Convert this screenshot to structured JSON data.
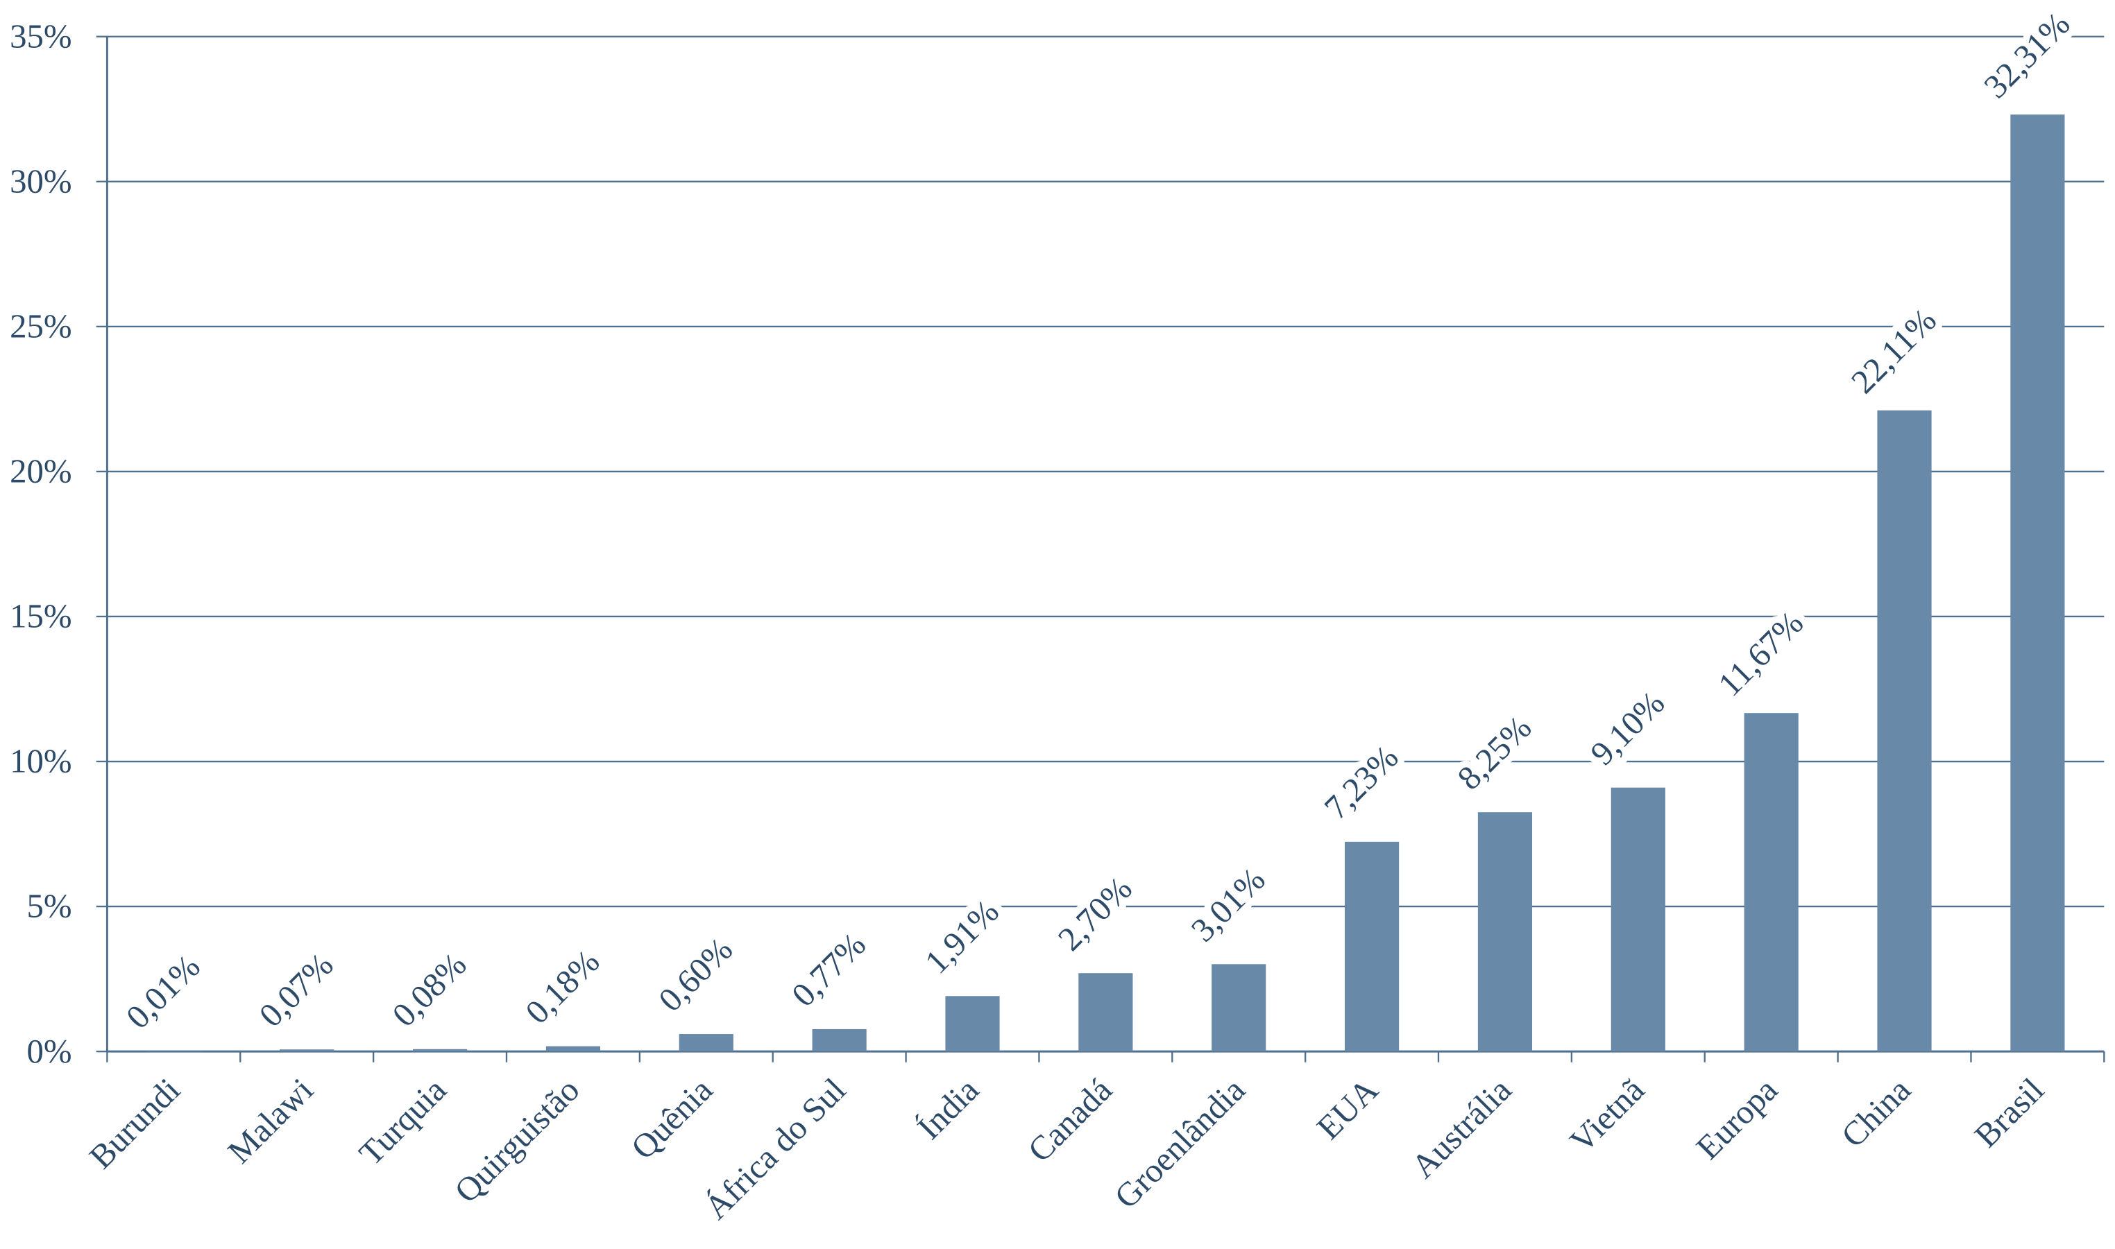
{
  "chart_data": {
    "type": "bar",
    "categories": [
      "Burundi",
      "Malawi",
      "Turquia",
      "Quirguistão",
      "Quênia",
      "África do Sul",
      "Índia",
      "Canadá",
      "Groenlândia",
      "EUA",
      "Austrália",
      "Vietnã",
      "Europa",
      "China",
      "Brasil"
    ],
    "values": [
      0.01,
      0.07,
      0.08,
      0.18,
      0.6,
      0.77,
      1.91,
      2.7,
      3.01,
      7.23,
      8.25,
      9.1,
      11.67,
      22.11,
      32.31
    ],
    "value_labels": [
      "0,01%",
      "0,07%",
      "0,08%",
      "0,18%",
      "0,60%",
      "0,77%",
      "1,91%",
      "2,70%",
      "3,01%",
      "7,23%",
      "8,25%",
      "9,10%",
      "11,67%",
      "22,11%",
      "32,31%"
    ],
    "color": "#6889a8",
    "ylim": [
      0,
      35
    ],
    "yticks": [
      {
        "value": 0,
        "label": "0%"
      },
      {
        "value": 5,
        "label": "5%"
      },
      {
        "value": 10,
        "label": "10%"
      },
      {
        "value": 15,
        "label": "15%"
      },
      {
        "value": 20,
        "label": "20%"
      },
      {
        "value": 25,
        "label": "25%"
      },
      {
        "value": 30,
        "label": "30%"
      },
      {
        "value": 35,
        "label": "35%"
      }
    ],
    "grid": true
  }
}
